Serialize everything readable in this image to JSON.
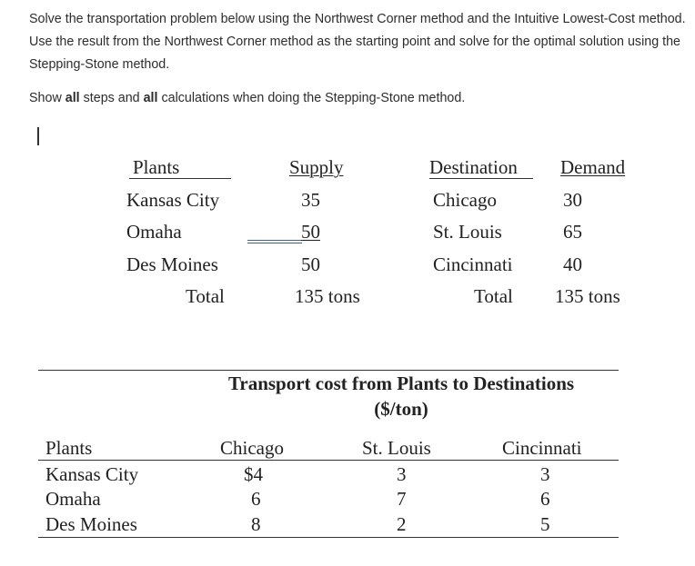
{
  "instructions": {
    "paragraph1": "Solve the transportation problem below using the Northwest Corner method and the Intuitive Lowest-Cost method. Use the result from the Northwest Corner method as the starting point and solve for the optimal solution using the Stepping-Stone method.",
    "p2_a": "Show ",
    "p2_b": "all",
    "p2_c": " steps and ",
    "p2_d": "all",
    "p2_e": " calculations when doing the Stepping-Stone method."
  },
  "supply_demand": {
    "headers": {
      "plants": "Plants",
      "supply": "Supply",
      "destination": "Destination",
      "demand": "Demand"
    },
    "plants": [
      "Kansas City",
      "Omaha",
      "Des Moines"
    ],
    "supply": [
      "35",
      "50",
      "50"
    ],
    "destinations": [
      "Chicago",
      "St. Louis",
      "Cincinnati"
    ],
    "demand": [
      "30",
      "65",
      "40"
    ],
    "total_label_left": "Total",
    "total_supply": "135 tons",
    "total_label_right": "Total",
    "total_demand": "135 tons"
  },
  "cost_table": {
    "title_line1": "Transport cost from Plants to Destinations",
    "title_line2": "($/ton)",
    "headers": [
      "Plants",
      "Chicago",
      "St. Louis",
      "Cincinnati"
    ],
    "rows": [
      {
        "plant": "Kansas City",
        "chicago": "$4",
        "st_louis": "3",
        "cincinnati": "3"
      },
      {
        "plant": "Omaha",
        "chicago": "6",
        "st_louis": "7",
        "cincinnati": "6"
      },
      {
        "plant": "Des Moines",
        "chicago": "8",
        "st_louis": "2",
        "cincinnati": "5"
      }
    ]
  }
}
